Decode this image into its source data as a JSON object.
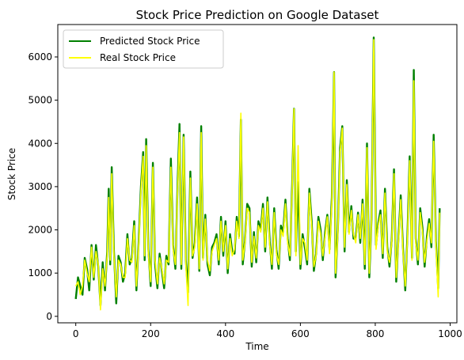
{
  "chart_data": {
    "type": "line",
    "title": "Stock Price Prediction on Google Dataset",
    "xlabel": "Time",
    "ylabel": "Stock Price",
    "xlim": [
      -48,
      1018
    ],
    "ylim": [
      -150,
      6750
    ],
    "xticks": [
      0,
      200,
      400,
      600,
      800,
      1000
    ],
    "xtick_labels": [
      "0",
      "200",
      "400",
      "600",
      "800",
      "1000"
    ],
    "yticks": [
      0,
      1000,
      2000,
      3000,
      4000,
      5000,
      6000
    ],
    "ytick_labels": [
      "0",
      "1000",
      "2000",
      "3000",
      "4000",
      "5000",
      "6000"
    ],
    "grid": false,
    "legend_position": "top-left",
    "series": [
      {
        "name": "Predicted  Stock Price",
        "color": "#008000",
        "x": [
          0,
          6,
          12,
          18,
          24,
          30,
          36,
          42,
          48,
          54,
          60,
          66,
          72,
          78,
          84,
          88,
          92,
          96,
          102,
          108,
          114,
          120,
          126,
          132,
          138,
          144,
          150,
          156,
          162,
          168,
          174,
          180,
          184,
          188,
          194,
          200,
          206,
          212,
          218,
          224,
          230,
          236,
          242,
          248,
          254,
          260,
          266,
          272,
          277,
          282,
          288,
          294,
          300,
          306,
          312,
          318,
          324,
          330,
          335,
          340,
          346,
          352,
          358,
          364,
          370,
          376,
          382,
          388,
          394,
          400,
          406,
          412,
          418,
          424,
          430,
          436,
          441,
          446,
          452,
          458,
          464,
          470,
          476,
          482,
          488,
          494,
          500,
          506,
          512,
          518,
          524,
          530,
          536,
          542,
          548,
          554,
          560,
          566,
          572,
          578,
          583,
          588,
          594,
          600,
          606,
          612,
          618,
          624,
          630,
          636,
          642,
          648,
          654,
          660,
          666,
          672,
          678,
          684,
          690,
          694,
          700,
          706,
          712,
          718,
          724,
          730,
          736,
          742,
          748,
          754,
          760,
          766,
          772,
          778,
          784,
          790,
          796,
          802,
          808,
          814,
          820,
          826,
          832,
          838,
          844,
          850,
          856,
          862,
          868,
          874,
          880,
          886,
          892,
          898,
          903,
          908,
          914,
          920,
          926,
          932,
          938,
          944,
          950,
          956,
          962,
          968,
          972
        ],
        "y": [
          400,
          900,
          700,
          500,
          1350,
          1100,
          600,
          1650,
          850,
          1650,
          1150,
          250,
          1250,
          600,
          1500,
          2950,
          1200,
          3450,
          1500,
          300,
          1400,
          1250,
          800,
          1000,
          1900,
          1200,
          1350,
          2200,
          600,
          1700,
          3000,
          3800,
          1300,
          4100,
          1550,
          700,
          3550,
          1200,
          650,
          1450,
          1050,
          650,
          1400,
          1200,
          3650,
          1650,
          1100,
          3050,
          4450,
          1100,
          4200,
          1300,
          550,
          3350,
          1350,
          1700,
          2750,
          1050,
          4400,
          1350,
          2350,
          1200,
          950,
          1600,
          1700,
          1900,
          1200,
          2300,
          1400,
          2200,
          1000,
          1900,
          1500,
          1450,
          2300,
          1850,
          4550,
          1200,
          1750,
          2600,
          2500,
          1150,
          1950,
          1250,
          2200,
          2000,
          2600,
          1500,
          2750,
          1750,
          1100,
          2500,
          1550,
          1100,
          2100,
          1950,
          2700,
          1800,
          1300,
          3050,
          4800,
          1500,
          3100,
          1100,
          1900,
          1600,
          1200,
          2950,
          2200,
          1050,
          1450,
          2300,
          2000,
          1300,
          1950,
          2350,
          1550,
          2750,
          5650,
          900,
          2000,
          3900,
          4400,
          1500,
          3150,
          1950,
          2550,
          1800,
          1800,
          2400,
          1700,
          2700,
          1100,
          4000,
          900,
          2250,
          6450,
          1650,
          2150,
          2450,
          1350,
          2950,
          1600,
          1150,
          1750,
          3400,
          800,
          1800,
          2800,
          1600,
          600,
          1900,
          3700,
          1350,
          5700,
          1800,
          1200,
          2500,
          2050,
          1150,
          1850,
          2250,
          1600,
          4200,
          1750,
          650,
          2500
        ]
      },
      {
        "name": "Real Stock Price",
        "color": "#ffff00",
        "x": [
          0,
          6,
          12,
          18,
          24,
          30,
          36,
          42,
          48,
          54,
          60,
          66,
          72,
          78,
          84,
          88,
          92,
          96,
          102,
          108,
          114,
          120,
          126,
          132,
          138,
          144,
          150,
          156,
          162,
          168,
          174,
          180,
          184,
          188,
          194,
          200,
          206,
          212,
          218,
          224,
          230,
          236,
          242,
          248,
          254,
          260,
          266,
          272,
          277,
          282,
          288,
          294,
          300,
          306,
          312,
          318,
          324,
          330,
          335,
          340,
          346,
          352,
          358,
          364,
          370,
          376,
          382,
          388,
          394,
          400,
          406,
          412,
          418,
          424,
          430,
          436,
          441,
          446,
          452,
          458,
          464,
          470,
          476,
          482,
          488,
          494,
          500,
          506,
          512,
          518,
          524,
          530,
          536,
          542,
          548,
          554,
          560,
          566,
          572,
          578,
          583,
          588,
          594,
          600,
          606,
          612,
          618,
          624,
          630,
          636,
          642,
          648,
          654,
          660,
          666,
          672,
          678,
          684,
          690,
          694,
          700,
          706,
          712,
          718,
          724,
          730,
          736,
          742,
          748,
          754,
          760,
          766,
          772,
          778,
          784,
          790,
          796,
          802,
          808,
          814,
          820,
          826,
          832,
          838,
          844,
          850,
          856,
          862,
          868,
          874,
          880,
          886,
          892,
          898,
          903,
          908,
          914,
          920,
          926,
          932,
          938,
          944,
          950,
          956,
          962,
          968,
          972
        ],
        "y": [
          700,
          800,
          500,
          700,
          1300,
          1000,
          800,
          1600,
          900,
          1500,
          1200,
          150,
          1100,
          700,
          1400,
          2750,
          1300,
          3300,
          1400,
          450,
          1300,
          1200,
          900,
          900,
          1800,
          1300,
          1250,
          2100,
          700,
          1600,
          2900,
          3700,
          1400,
          3950,
          1450,
          800,
          3450,
          1300,
          750,
          1350,
          1100,
          750,
          1300,
          1250,
          3450,
          1550,
          1200,
          2900,
          4250,
          1200,
          4150,
          1200,
          250,
          3200,
          1400,
          1600,
          2600,
          1100,
          4250,
          1300,
          2250,
          1300,
          1050,
          1500,
          1650,
          1800,
          1300,
          2200,
          1500,
          2100,
          1100,
          1800,
          1400,
          1550,
          2200,
          1800,
          4700,
          1300,
          1700,
          2500,
          2400,
          1250,
          1850,
          1350,
          2100,
          1950,
          2500,
          1600,
          2650,
          1650,
          1200,
          2400,
          1450,
          1200,
          2000,
          1850,
          2600,
          1700,
          1400,
          2950,
          4800,
          1400,
          3950,
          1200,
          1800,
          1700,
          1300,
          2850,
          2100,
          1150,
          1400,
          2200,
          1900,
          1400,
          1850,
          2300,
          1450,
          2650,
          5650,
          1000,
          1900,
          3800,
          4350,
          1600,
          3050,
          1900,
          2450,
          1900,
          1700,
          2350,
          1800,
          2600,
          1200,
          3900,
          1000,
          2200,
          6400,
          1550,
          2100,
          2350,
          1450,
          2850,
          1500,
          1250,
          1700,
          3300,
          900,
          1700,
          2700,
          1500,
          700,
          1800,
          3600,
          1300,
          5450,
          1700,
          1300,
          2400,
          1950,
          1250,
          1750,
          2150,
          1700,
          4050,
          1650,
          450,
          2400
        ]
      }
    ]
  }
}
